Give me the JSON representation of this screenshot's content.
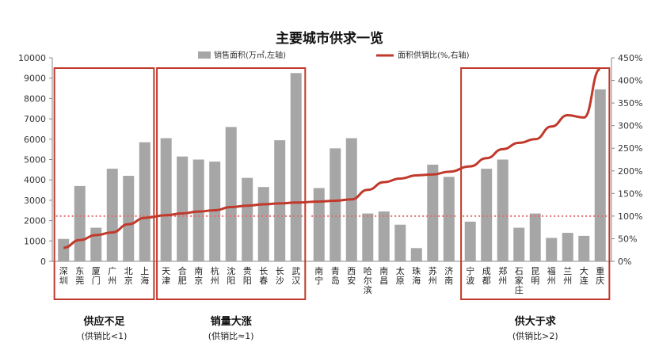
{
  "chart_data": {
    "type": "bar",
    "title": "主要城市供求一览",
    "legend": {
      "placement": "top",
      "bar_label": "销售面积(万㎡,左轴)",
      "line_label": "面积供销比(%,右轴)"
    },
    "categories": [
      "深圳",
      "东莞",
      "厦门",
      "广州",
      "北京",
      "上海",
      "天津",
      "合肥",
      "南京",
      "杭州",
      "沈阳",
      "贵阳",
      "长春",
      "长沙",
      "武汉",
      "南宁",
      "青岛",
      "西安",
      "哈尔滨",
      "南昌",
      "太原",
      "珠海",
      "苏州",
      "济南",
      "宁波",
      "成都",
      "郑州",
      "石家庄",
      "昆明",
      "福州",
      "兰州",
      "大连",
      "重庆"
    ],
    "series": [
      {
        "name": "销售面积(万㎡,左轴)",
        "axis": "left",
        "type": "bar",
        "color": "#a6a6a6",
        "values": [
          1100,
          3700,
          1650,
          4550,
          4200,
          5850,
          6050,
          5150,
          5000,
          4900,
          6600,
          4100,
          3650,
          5950,
          9250,
          3600,
          5550,
          6050,
          2350,
          2450,
          1800,
          650,
          4750,
          4150,
          1950,
          4550,
          5000,
          1650,
          2350,
          1150,
          1400,
          1250,
          8450
        ]
      },
      {
        "name": "面积供销比(%,右轴)",
        "axis": "right",
        "type": "line",
        "color": "#c0392b",
        "values": [
          30,
          47,
          58,
          64,
          82,
          96,
          102,
          106,
          110,
          113,
          120,
          123,
          126,
          128,
          130,
          132,
          134,
          137,
          158,
          175,
          183,
          190,
          192,
          198,
          210,
          228,
          248,
          262,
          270,
          298,
          323,
          318,
          425
        ]
      }
    ],
    "reference_line": {
      "axis": "right",
      "value": 100,
      "color": "#e07070",
      "style": "dotted"
    },
    "y_left": {
      "min": 0,
      "max": 10000,
      "step": 1000,
      "ticks": [
        "0",
        "1000",
        "2000",
        "3000",
        "4000",
        "5000",
        "6000",
        "7000",
        "8000",
        "9000",
        "10000"
      ]
    },
    "y_right": {
      "min": 0,
      "max": 450,
      "step": 50,
      "ticks": [
        "0%",
        "50%",
        "100%",
        "150%",
        "200%",
        "250%",
        "300%",
        "350%",
        "400%",
        "450%"
      ]
    },
    "groups": [
      {
        "label": "供应不足",
        "sublabel": "(供销比<1)",
        "from": 0,
        "to": 5,
        "boxed": true
      },
      {
        "label": "销量大涨",
        "sublabel": "(供销比≈1)",
        "from": 6,
        "to": 14,
        "boxed": true
      },
      {
        "label": "",
        "sublabel": "",
        "from": 15,
        "to": 23,
        "boxed": false
      },
      {
        "label": "供大于求",
        "sublabel": "(供销比>2)",
        "from": 24,
        "to": 32,
        "boxed": true
      }
    ],
    "grid": false,
    "colors": {
      "box": "#c0392b",
      "bar": "#a6a6a6",
      "line": "#c0392b",
      "reference": "#e07070"
    }
  }
}
